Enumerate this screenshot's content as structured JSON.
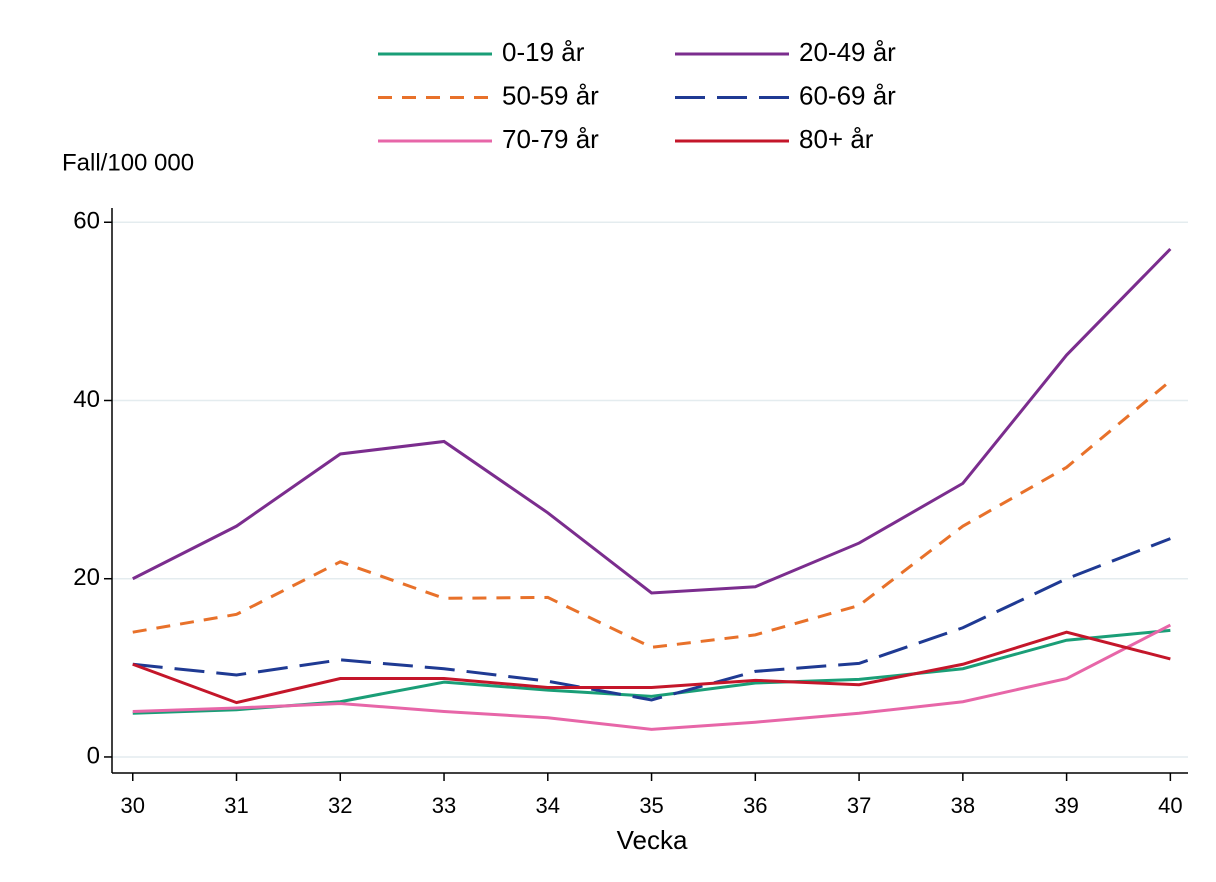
{
  "chart_data": {
    "type": "line",
    "y_label": "Fall/100 000",
    "x_label": "Vecka",
    "x": [
      30,
      31,
      32,
      33,
      34,
      35,
      36,
      37,
      38,
      39,
      40
    ],
    "xlim": [
      29.8,
      40.17
    ],
    "xticks": [
      30,
      31,
      32,
      33,
      34,
      35,
      36,
      37,
      38,
      39,
      40
    ],
    "ylim": [
      -1.8,
      61.6
    ],
    "yticks": [
      0,
      20,
      40,
      60
    ],
    "grid": true,
    "series": [
      {
        "name": "0-19 år",
        "color": "#1a9e77",
        "dash": "solid",
        "values": [
          4.9,
          5.3,
          6.2,
          8.4,
          7.5,
          6.8,
          8.3,
          8.7,
          9.9,
          13.1,
          14.2
        ]
      },
      {
        "name": "20-49 år",
        "color": "#7b2d8e",
        "dash": "solid",
        "values": [
          20.0,
          25.9,
          34.0,
          35.4,
          27.4,
          18.4,
          19.1,
          24.0,
          30.7,
          45.1,
          57.0
        ]
      },
      {
        "name": "50-59 år",
        "color": "#e8712a",
        "dash": "dashed",
        "values": [
          14.0,
          16.0,
          21.9,
          17.8,
          17.9,
          12.3,
          13.7,
          17.0,
          25.9,
          32.5,
          42.2
        ]
      },
      {
        "name": "60-69 år",
        "color": "#1f3a93",
        "dash": "longdash",
        "values": [
          10.4,
          9.2,
          10.9,
          9.9,
          8.5,
          6.4,
          9.6,
          10.5,
          14.5,
          20.0,
          24.5
        ]
      },
      {
        "name": "70-79 år",
        "color": "#e766a8",
        "dash": "solid",
        "values": [
          5.1,
          5.5,
          6.0,
          5.1,
          4.4,
          3.1,
          3.9,
          4.9,
          6.2,
          8.8,
          14.8
        ]
      },
      {
        "name": "80+ år",
        "color": "#c4162a",
        "dash": "solid",
        "values": [
          10.4,
          6.1,
          8.8,
          8.8,
          7.8,
          7.8,
          8.6,
          8.1,
          10.4,
          14.0,
          11.0
        ]
      }
    ]
  }
}
